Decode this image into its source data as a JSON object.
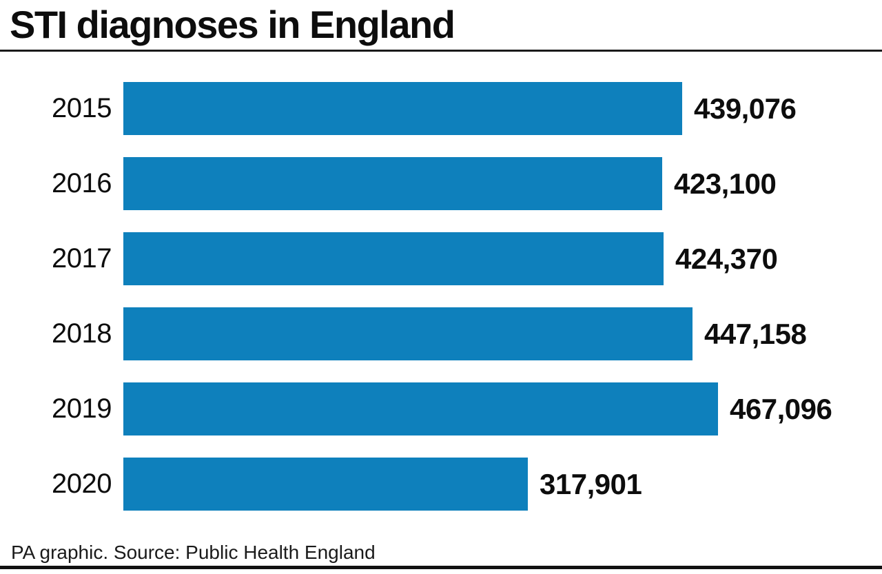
{
  "header": {
    "title": "STI diagnoses in England"
  },
  "footer": {
    "caption": "PA graphic. Source: Public Health England"
  },
  "colors": {
    "bar": "#0e80bc",
    "text": "#0d0d0d",
    "rule": "#1a1a1a",
    "background": "#ffffff"
  },
  "chart_data": {
    "type": "bar",
    "orientation": "horizontal",
    "title": "STI diagnoses in England",
    "categories": [
      "2015",
      "2016",
      "2017",
      "2018",
      "2019",
      "2020"
    ],
    "values": [
      439076,
      423100,
      424370,
      447158,
      467096,
      317901
    ],
    "value_labels": [
      "439,076",
      "423,100",
      "424,370",
      "447,158",
      "467,096",
      "317,901"
    ],
    "series": [
      {
        "name": "STI diagnoses",
        "values": [
          439076,
          423100,
          424370,
          447158,
          467096,
          317901
        ]
      }
    ],
    "xlabel": "",
    "ylabel": "",
    "xlim": [
      0,
      467096
    ],
    "grid": false,
    "legend": "none",
    "data_labels": "end-of-bar",
    "bar_color": "#0e80bc",
    "source": "PA graphic. Source: Public Health England"
  }
}
